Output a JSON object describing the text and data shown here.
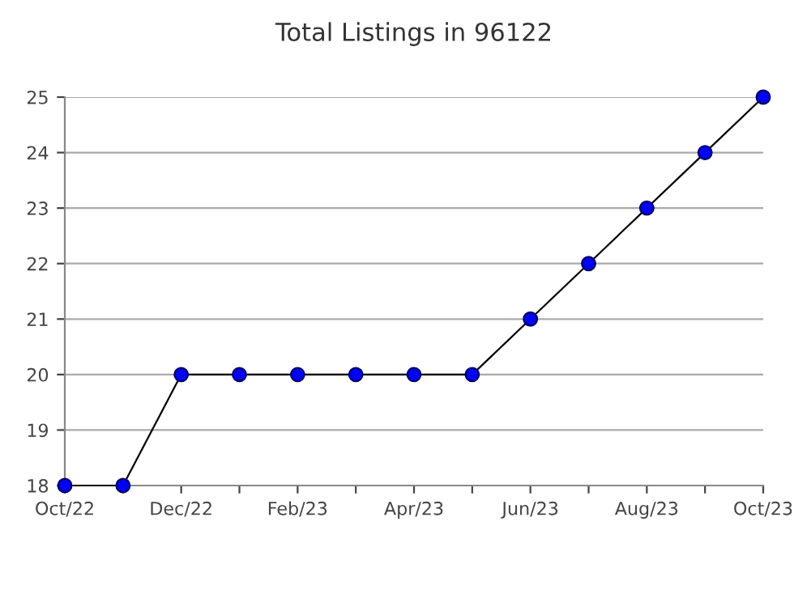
{
  "chart_data": {
    "type": "line",
    "title": "Total Listings in 96122",
    "categories": [
      "Oct/22",
      null,
      "Dec/22",
      null,
      "Feb/23",
      null,
      "Apr/23",
      null,
      "Jun/23",
      null,
      "Aug/23",
      null,
      "Oct/23"
    ],
    "series": [
      {
        "color": "#0000ff",
        "values": [
          18,
          18,
          20,
          20,
          20,
          20,
          20,
          20,
          21,
          22,
          23,
          24,
          25
        ]
      }
    ],
    "ylim": [
      18,
      25
    ],
    "yticks": [
      18,
      19,
      20,
      21,
      22,
      23,
      24,
      25
    ],
    "grid": "y",
    "marker": "circle",
    "line_style": "solid",
    "legend": false
  }
}
